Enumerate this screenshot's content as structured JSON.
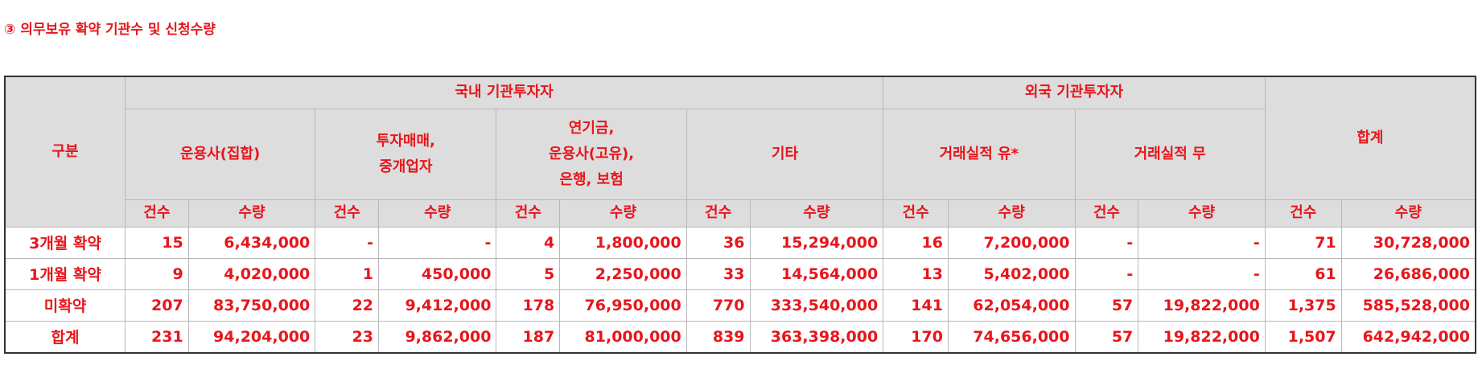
{
  "title": "③ 의무보유 확약 기관수 및 신청수량",
  "header": {
    "category": "구분",
    "domestic": "국내 기관투자자",
    "foreign": "외국 기관투자자",
    "total": "합계",
    "groups": {
      "asset_mgmt": "운용사(집합)",
      "securities_1": "투자매매,",
      "securities_2": "중개업자",
      "pension_1": "연기금,",
      "pension_2": "운용사(고유),",
      "pension_3": "은행, 보험",
      "other": "기타",
      "track_yes": "거래실적 유*",
      "track_no": "거래실적 무"
    },
    "count": "건수",
    "quantity": "수량"
  },
  "rows": [
    {
      "label": "3개월 확약",
      "cells": [
        "15",
        "6,434,000",
        "-",
        "-",
        "4",
        "1,800,000",
        "36",
        "15,294,000",
        "16",
        "7,200,000",
        "-",
        "-",
        "71",
        "30,728,000"
      ]
    },
    {
      "label": "1개월 확약",
      "cells": [
        "9",
        "4,020,000",
        "1",
        "450,000",
        "5",
        "2,250,000",
        "33",
        "14,564,000",
        "13",
        "5,402,000",
        "-",
        "-",
        "61",
        "26,686,000"
      ]
    },
    {
      "label": "미확약",
      "cells": [
        "207",
        "83,750,000",
        "22",
        "9,412,000",
        "178",
        "76,950,000",
        "770",
        "333,540,000",
        "141",
        "62,054,000",
        "57",
        "19,822,000",
        "1,375",
        "585,528,000"
      ]
    },
    {
      "label": "합계",
      "cells": [
        "231",
        "94,204,000",
        "23",
        "9,862,000",
        "187",
        "81,000,000",
        "839",
        "363,398,000",
        "170",
        "74,656,000",
        "57",
        "19,822,000",
        "1,507",
        "642,942,000"
      ]
    }
  ]
}
